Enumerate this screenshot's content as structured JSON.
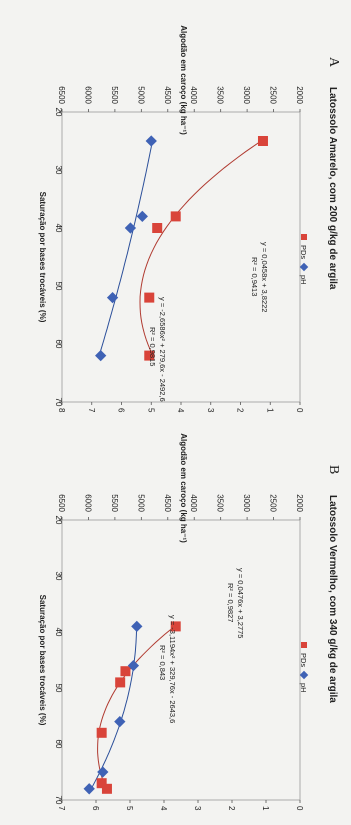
{
  "chart_data": [
    {
      "type": "scatter",
      "panel": "A",
      "title": "Latossolo Amarelo, com 200 g/kg de argila",
      "xlabel": "Saturação por bases trocáveis (%)",
      "ylabel": "Algodão em caroço (kg ha⁻¹)",
      "xlim": [
        20,
        70
      ],
      "xticks": [
        "20",
        "30",
        "40",
        "50",
        "60",
        "70"
      ],
      "ylim_left": [
        2000,
        6500
      ],
      "yticks_left": [
        "2000",
        "2500",
        "3000",
        "3500",
        "4000",
        "4500",
        "5000",
        "5500",
        "6000",
        "6500"
      ],
      "ylim_right": [
        0,
        8
      ],
      "yticks_right": [
        "0",
        "1",
        "2",
        "3",
        "4",
        "5",
        "6",
        "7",
        "8"
      ],
      "legend": [
        "PDs",
        "pH"
      ],
      "colors": {
        "PDs": "#d9443a",
        "pH": "#3f62b5"
      },
      "series": [
        {
          "name": "PDs",
          "axis": "left",
          "marker": "square",
          "x": [
            25,
            38,
            40,
            52,
            62
          ],
          "y": [
            2700,
            4350,
            4700,
            4850,
            4850
          ]
        },
        {
          "name": "pH",
          "axis": "right",
          "marker": "diamond",
          "x": [
            25,
            38,
            40,
            52,
            62
          ],
          "y": [
            5.0,
            5.3,
            5.7,
            6.3,
            6.7
          ]
        }
      ],
      "pds_equation": "y = -2,6586x² + 279,6x - 2492,6",
      "pds_r2": "R² = 0,9815",
      "ph_equation": "y = 0,0458x + 3,8222",
      "ph_r2": "R² = 0,9413"
    },
    {
      "type": "scatter",
      "panel": "B",
      "title": "Latossolo Vermelho, com 340 g/kg de argila",
      "xlabel": "Saturação por bases trocáveis (%)",
      "ylabel": "Algodão em caroço (kg ha⁻¹)",
      "xlim": [
        20,
        70
      ],
      "xticks": [
        "20",
        "30",
        "40",
        "50",
        "60",
        "70"
      ],
      "ylim_left": [
        2000,
        6500
      ],
      "yticks_left": [
        "2000",
        "2500",
        "3000",
        "3500",
        "4000",
        "4500",
        "5000",
        "5500",
        "6000",
        "6500"
      ],
      "ylim_right": [
        0,
        7
      ],
      "yticks_right": [
        "0",
        "1",
        "2",
        "3",
        "4",
        "5",
        "6",
        "7"
      ],
      "legend": [
        "PDs",
        "pH"
      ],
      "colors": {
        "PDs": "#d9443a",
        "pH": "#3f62b5"
      },
      "series": [
        {
          "name": "PDs",
          "axis": "left",
          "marker": "square",
          "x": [
            39,
            47,
            49,
            58,
            67,
            68
          ],
          "y": [
            4350,
            5300,
            5400,
            5750,
            5750,
            5650
          ]
        },
        {
          "name": "pH",
          "axis": "right",
          "marker": "diamond",
          "x": [
            39,
            46,
            56,
            65,
            68
          ],
          "y": [
            4.8,
            4.9,
            5.3,
            5.8,
            6.2
          ]
        }
      ],
      "pds_equation": "y = -3,1194x² + 329,76x - 2643,6",
      "pds_r2": "R² = 0,843",
      "ph_equation": "y = 0,0476x + 3,2775",
      "ph_r2": "R² = 0,9827"
    }
  ]
}
